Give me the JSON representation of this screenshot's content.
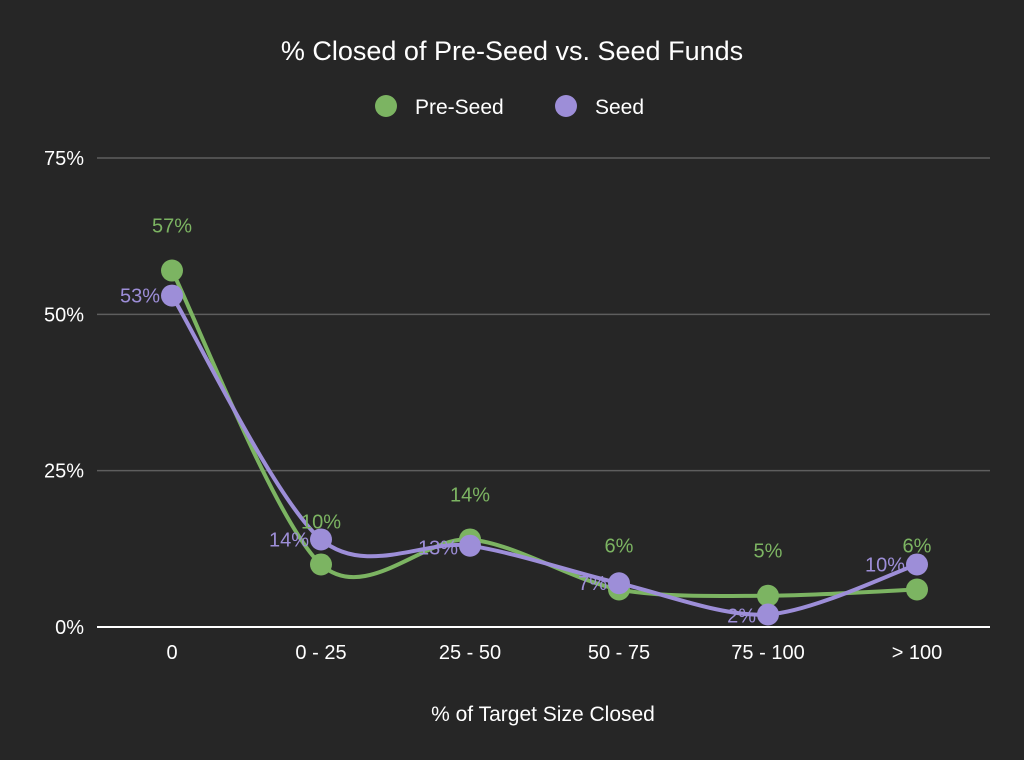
{
  "chart_data": {
    "type": "line",
    "title": "% Closed of Pre-Seed vs. Seed Funds",
    "xlabel": "% of Target Size Closed",
    "ylabel": "",
    "categories": [
      "0",
      "0 - 25",
      "25 - 50",
      "50 - 75",
      "75 - 100",
      "> 100"
    ],
    "ylim": [
      0,
      75
    ],
    "yticks": [
      0,
      25,
      50,
      75
    ],
    "ytick_labels": [
      "0%",
      "25%",
      "50%",
      "75%"
    ],
    "legend_position": "top-center",
    "grid": true,
    "smooth": true,
    "series": [
      {
        "name": "Pre-Seed",
        "color": "#7cb462",
        "values": [
          57,
          10,
          14,
          6,
          5,
          6
        ],
        "labels": [
          "57%",
          "10%",
          "14%",
          "6%",
          "5%",
          "6%"
        ]
      },
      {
        "name": "Seed",
        "color": "#9d8ed8",
        "values": [
          53,
          14,
          13,
          7,
          2,
          10
        ],
        "labels": [
          "53%",
          "14%",
          "13%",
          "7%",
          "2%",
          "10%"
        ]
      }
    ]
  }
}
